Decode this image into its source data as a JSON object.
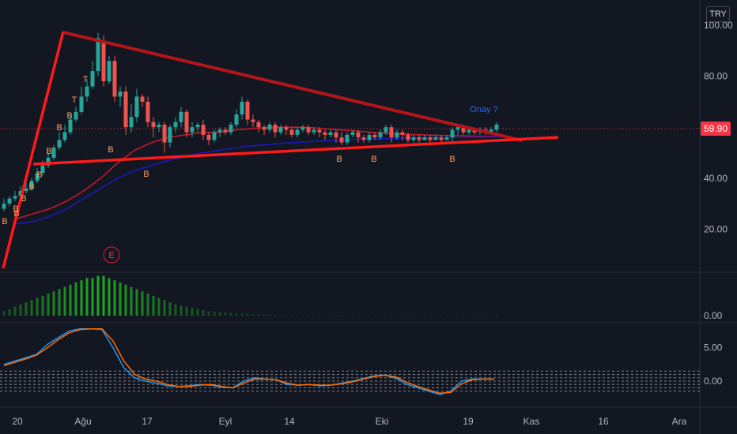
{
  "currency": "TRY",
  "last_price_label": "59.90",
  "colors": {
    "background": "#131722",
    "up": "#26a69a",
    "down": "#ef5350",
    "trendline": "#ff1a1a",
    "trendline_dark": "#b3151b",
    "ma_red": "#c2182b",
    "ma_blue": "#1a1ab8",
    "macd_line": "#2196f3",
    "signal_line": "#ff6d00",
    "volume_bar": "#1fa824",
    "annotation_blue": "#2962ff",
    "annotation_orange": "#ff9e5e"
  },
  "chart_data": [
    {
      "type": "candlestick",
      "pane": "price",
      "ylim": [
        0,
        100
      ],
      "y_ticks": [
        "100.00",
        "80.00",
        "60.00",
        "40.00",
        "20.00"
      ],
      "x_ticks": [
        "20",
        "Ağu",
        "17",
        "Eyl",
        "14",
        "Eki",
        "19",
        "Kas",
        "16",
        "Ara"
      ],
      "candles": [
        [
          28,
          30,
          27,
          32
        ],
        [
          30,
          32,
          29,
          33
        ],
        [
          32,
          33,
          31,
          35
        ],
        [
          33,
          35,
          32,
          37
        ],
        [
          35,
          36,
          34,
          39
        ],
        [
          36,
          39,
          35,
          40
        ],
        [
          39,
          42,
          38,
          44
        ],
        [
          42,
          45,
          41,
          47
        ],
        [
          45,
          48,
          44,
          50
        ],
        [
          48,
          52,
          47,
          53
        ],
        [
          52,
          55,
          51,
          58
        ],
        [
          55,
          58,
          54,
          61
        ],
        [
          58,
          63,
          57,
          65
        ],
        [
          63,
          66,
          62,
          68
        ],
        [
          66,
          72,
          65,
          76
        ],
        [
          72,
          76,
          70,
          79
        ],
        [
          76,
          82,
          75,
          86
        ],
        [
          82,
          95,
          80,
          97
        ],
        [
          94,
          78,
          76,
          96
        ],
        [
          78,
          86,
          77,
          88
        ],
        [
          86,
          72,
          70,
          88
        ],
        [
          72,
          74,
          68,
          76
        ],
        [
          74,
          60,
          57,
          76
        ],
        [
          60,
          64,
          58,
          69
        ],
        [
          64,
          72,
          62,
          75
        ],
        [
          72,
          70,
          68,
          73
        ],
        [
          70,
          62,
          60,
          72
        ],
        [
          62,
          60,
          56,
          64
        ],
        [
          60,
          61,
          58,
          62
        ],
        [
          61,
          54,
          50,
          62
        ],
        [
          54,
          60,
          52,
          61
        ],
        [
          60,
          62,
          58,
          64
        ],
        [
          62,
          66,
          60,
          68
        ],
        [
          66,
          58,
          56,
          67
        ],
        [
          58,
          60,
          56,
          62
        ],
        [
          60,
          61,
          58,
          62
        ],
        [
          61,
          57,
          55,
          63
        ],
        [
          57,
          55,
          53,
          58
        ],
        [
          55,
          58,
          54,
          59
        ],
        [
          58,
          59,
          56,
          60
        ],
        [
          59,
          58,
          57,
          60
        ],
        [
          58,
          61,
          57,
          62
        ],
        [
          61,
          65,
          60,
          67
        ],
        [
          65,
          70,
          63,
          72
        ],
        [
          70,
          63,
          61,
          71
        ],
        [
          63,
          62,
          60,
          65
        ],
        [
          62,
          60,
          58,
          63
        ],
        [
          60,
          59,
          57,
          61
        ],
        [
          59,
          61,
          58,
          62
        ],
        [
          61,
          58,
          56,
          62
        ],
        [
          58,
          60,
          57,
          61
        ],
        [
          60,
          59,
          57,
          61
        ],
        [
          59,
          57,
          56,
          60
        ],
        [
          57,
          59,
          56,
          60
        ],
        [
          59,
          60,
          58,
          61
        ],
        [
          60,
          58,
          57,
          61
        ],
        [
          58,
          59,
          57,
          60
        ],
        [
          59,
          58,
          56,
          60
        ],
        [
          58,
          57,
          55,
          59
        ],
        [
          57,
          58,
          56,
          59
        ],
        [
          58,
          56,
          54,
          59
        ],
        [
          56,
          54,
          53,
          58
        ],
        [
          54,
          57,
          53,
          58
        ],
        [
          57,
          58,
          56,
          59
        ],
        [
          58,
          56,
          54,
          59
        ],
        [
          56,
          55,
          54,
          57
        ],
        [
          55,
          57,
          54,
          58
        ],
        [
          57,
          56,
          55,
          58
        ],
        [
          56,
          58,
          55,
          59
        ],
        [
          58,
          60,
          57,
          61
        ],
        [
          60,
          56,
          54,
          61
        ],
        [
          56,
          58,
          55,
          59
        ],
        [
          58,
          57,
          55,
          59
        ],
        [
          57,
          55,
          54,
          58
        ],
        [
          55,
          56,
          54,
          57
        ],
        [
          56,
          55,
          54,
          57
        ],
        [
          55,
          56,
          55,
          57
        ],
        [
          56,
          55,
          54,
          57
        ],
        [
          55,
          56,
          55,
          57
        ],
        [
          56,
          55,
          54,
          57
        ],
        [
          55,
          56,
          55,
          57
        ],
        [
          56,
          59,
          54,
          60
        ],
        [
          59,
          60,
          57,
          61
        ],
        [
          60,
          58,
          57,
          61
        ],
        [
          58,
          59,
          57,
          60
        ],
        [
          59,
          58,
          57,
          60
        ],
        [
          58,
          59,
          57,
          60
        ],
        [
          59,
          58,
          57,
          60
        ],
        [
          58,
          59,
          57,
          60
        ],
        [
          59,
          61,
          58,
          62
        ]
      ],
      "moving_averages": [
        {
          "color": "red",
          "values": [
            24,
            26,
            28,
            31,
            35,
            40,
            46,
            51,
            54,
            56,
            57,
            58,
            58,
            59,
            59.5,
            60,
            60,
            60,
            59.5,
            59,
            58.5,
            58,
            57.5,
            57.2,
            57,
            56.8,
            56.7,
            56.5,
            56.4,
            56.3
          ]
        },
        {
          "color": "blue",
          "values": [
            22,
            23,
            25,
            28,
            32,
            36,
            40,
            43,
            45,
            47,
            48.5,
            50,
            51,
            52,
            52.7,
            53.3,
            53.8,
            54.2,
            54.6,
            54.9,
            55.2,
            55.4,
            55.6,
            55.7,
            55.9,
            56,
            56,
            56.1,
            56.2,
            56.3
          ]
        }
      ],
      "trendlines": [
        {
          "from": [
            "start",
            0
          ],
          "to": [
            "Ağu",
            97
          ]
        },
        {
          "from": [
            "Ağu",
            97
          ],
          "to": [
            "apex",
            56
          ]
        },
        {
          "from": [
            "start",
            45
          ],
          "to": [
            "apex",
            57
          ]
        }
      ],
      "annotations": [
        {
          "text": "Onay ?",
          "color": "blue"
        },
        {
          "text": "E",
          "shape": "circle",
          "color": "red"
        },
        {
          "text": "B",
          "count": 14,
          "color": "orange"
        },
        {
          "text": "T",
          "count": 2,
          "color": "orange"
        }
      ]
    },
    {
      "type": "bar",
      "pane": "indicator",
      "y_ticks": [
        "0.00"
      ],
      "values": [
        2,
        3,
        4,
        5,
        6,
        7,
        8,
        9,
        10,
        11,
        12,
        13,
        14,
        15,
        16,
        17,
        17,
        18,
        18,
        17,
        16,
        15,
        14,
        13,
        12,
        11,
        10,
        9,
        8,
        7,
        6,
        5,
        4.5,
        4,
        3.5,
        3,
        2.5,
        2,
        1.8,
        1.6,
        1.4,
        1.2,
        1,
        0.9,
        0.8,
        0.7,
        0.6,
        0.5,
        0.4,
        0.4,
        0.3,
        0.3,
        0.2,
        0.2,
        0.2,
        0.2,
        0.1,
        0.1,
        0.1,
        0.1,
        0.1,
        0.1,
        0.1,
        0.1,
        0.1,
        0.1,
        0.1,
        0.1,
        0.1,
        0.1,
        0.1,
        0.1,
        0.1,
        0.1,
        0.1,
        0.1,
        0.1,
        0.1,
        0.1,
        0.1,
        0.1,
        0.1,
        0.1,
        0.1,
        0.1,
        0.1,
        0.1,
        0.1,
        0.1,
        0.2
      ]
    },
    {
      "type": "line",
      "pane": "oscillator",
      "y_ticks": [
        "5.00",
        "0.00"
      ],
      "ylim": [
        -2,
        8
      ],
      "series": [
        {
          "color": "blue",
          "values": [
            2.5,
            3,
            3.5,
            4,
            5.5,
            6.5,
            7.5,
            7.8,
            7.8,
            7.7,
            5,
            2,
            0.5,
            0,
            -0.3,
            -0.7,
            -0.8,
            -0.7,
            -0.5,
            -0.6,
            -0.9,
            -1,
            0,
            0.5,
            0.3,
            0.2,
            -0.5,
            -0.6,
            -0.5,
            -0.7,
            -0.6,
            -0.3,
            0,
            0.4,
            0.8,
            0.9,
            0.4,
            -0.5,
            -1,
            -1.5,
            -2,
            -1.5,
            0,
            0.3,
            0.3,
            0.3
          ]
        },
        {
          "color": "orange",
          "values": [
            2.3,
            2.8,
            3.3,
            3.9,
            5,
            6.2,
            7.2,
            7.7,
            7.8,
            7.8,
            6,
            3,
            1,
            0.3,
            0,
            -0.5,
            -0.8,
            -0.8,
            -0.6,
            -0.5,
            -0.8,
            -1,
            -0.3,
            0.3,
            0.3,
            0.2,
            -0.3,
            -0.6,
            -0.5,
            -0.6,
            -0.6,
            -0.4,
            -0.1,
            0.3,
            0.7,
            0.9,
            0.6,
            -0.2,
            -0.8,
            -1.3,
            -1.8,
            -1.7,
            -0.4,
            0.2,
            0.3,
            0.3
          ]
        }
      ],
      "reference_levels": [
        1.5,
        1,
        0.5,
        0,
        -0.5,
        -1,
        -1.5
      ]
    }
  ]
}
